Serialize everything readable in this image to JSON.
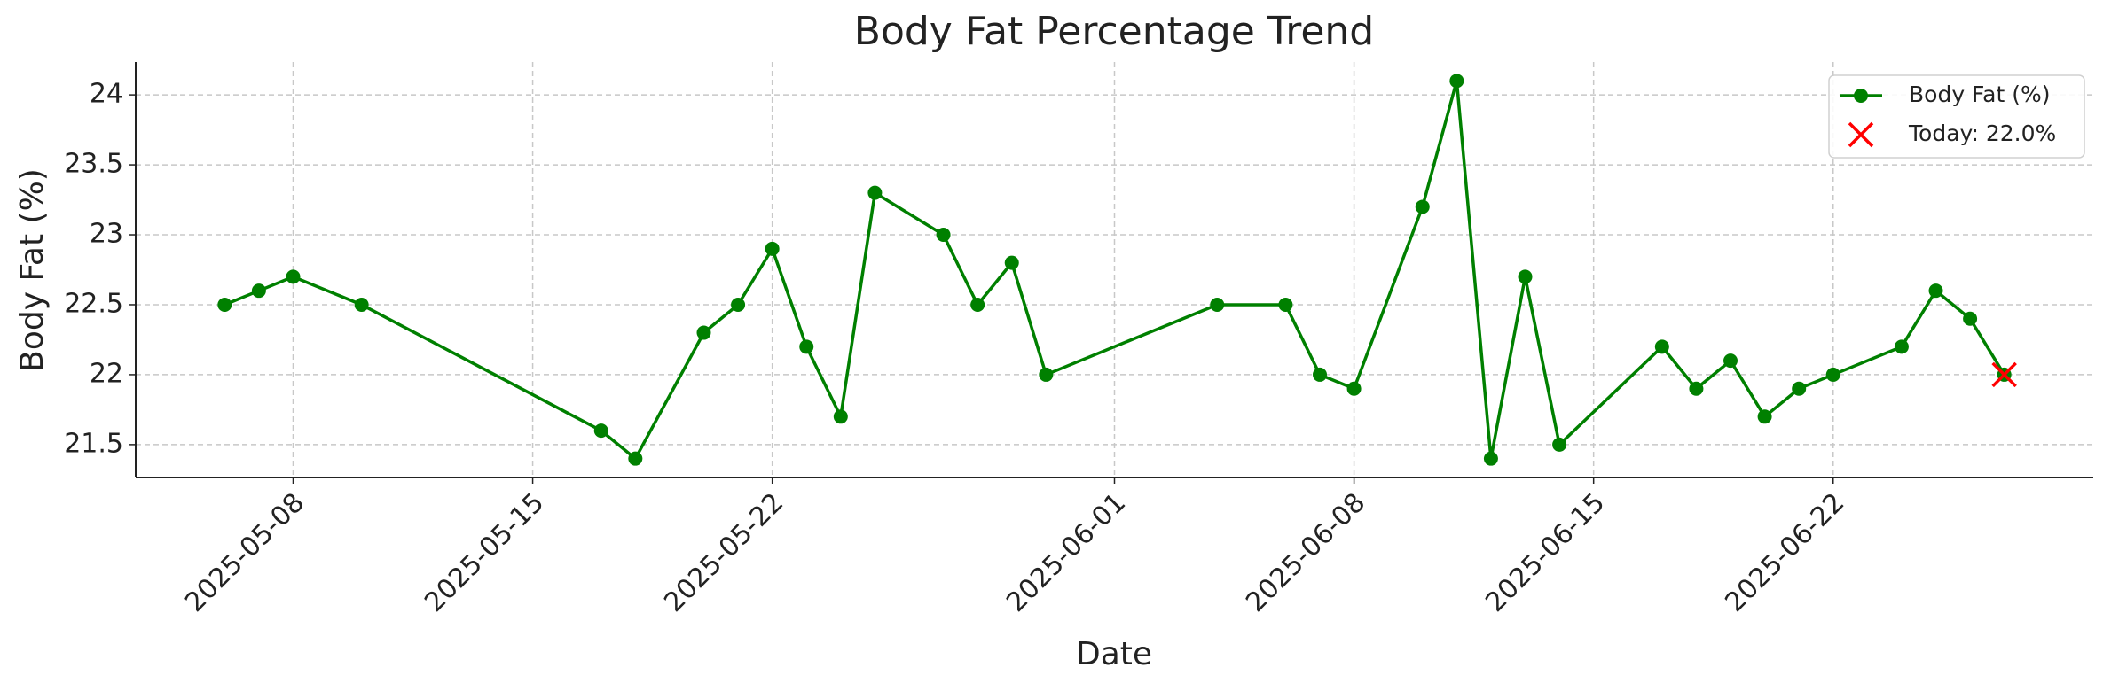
{
  "chart_data": {
    "type": "line",
    "title": "Body Fat Percentage Trend",
    "x_label": "Date",
    "y_label": "Body Fat (%)",
    "x": [
      "2025-05-06",
      "2025-05-07",
      "2025-05-08",
      "2025-05-10",
      "2025-05-17",
      "2025-05-18",
      "2025-05-20",
      "2025-05-21",
      "2025-05-22",
      "2025-05-23",
      "2025-05-24",
      "2025-05-25",
      "2025-05-27",
      "2025-05-28",
      "2025-05-29",
      "2025-05-30",
      "2025-06-04",
      "2025-06-06",
      "2025-06-07",
      "2025-06-08",
      "2025-06-10",
      "2025-06-11",
      "2025-06-12",
      "2025-06-13",
      "2025-06-14",
      "2025-06-17",
      "2025-06-18",
      "2025-06-19",
      "2025-06-20",
      "2025-06-21",
      "2025-06-22",
      "2025-06-24",
      "2025-06-25",
      "2025-06-26",
      "2025-06-27"
    ],
    "series": [
      {
        "name": "Body Fat (%)",
        "color": "#008000",
        "values": [
          22.5,
          22.6,
          22.7,
          22.5,
          21.6,
          21.4,
          22.3,
          22.5,
          22.9,
          22.2,
          21.7,
          23.3,
          23.0,
          22.5,
          22.8,
          22.0,
          22.5,
          22.5,
          22.0,
          21.9,
          23.2,
          24.1,
          21.4,
          22.7,
          21.5,
          22.2,
          21.9,
          22.1,
          21.7,
          21.9,
          22.0,
          22.2,
          22.6,
          22.4,
          22.0
        ]
      }
    ],
    "today": {
      "name": "Today: 22.0%",
      "x": "2025-06-27",
      "value": 22.0,
      "color": "#ff0000"
    },
    "xlim": [
      "2025-05-03T09:36:00Z",
      "2025-06-29T14:24:00Z"
    ],
    "xticks": [
      "2025-05-08",
      "2025-05-15",
      "2025-05-22",
      "2025-06-01",
      "2025-06-08",
      "2025-06-15",
      "2025-06-22"
    ],
    "ylim": [
      21.265,
      24.235
    ],
    "yticks": [
      21.5,
      22.0,
      22.5,
      23.0,
      23.5,
      24.0
    ],
    "grid": true,
    "legend": "upper right"
  }
}
